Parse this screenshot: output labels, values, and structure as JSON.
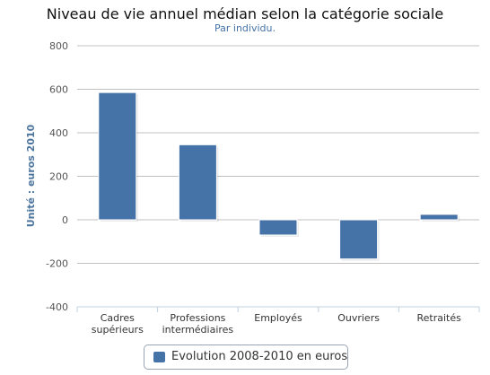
{
  "title": "Niveau de vie annuel médian selon la catégorie sociale",
  "subtitle": "Par individu.",
  "colors": {
    "bar": "#4572a7",
    "grid": "#c0c0c0",
    "axis_text": "#333333",
    "ylabel": "#4d759e"
  },
  "chart_data": {
    "type": "bar",
    "title": "Niveau de vie annuel médian selon la catégorie sociale",
    "subtitle": "Par individu.",
    "categories": [
      "Cadres supérieurs",
      "Professions intermédiaires",
      "Employés",
      "Ouvriers",
      "Retraités"
    ],
    "category_lines": [
      [
        "Cadres",
        "supérieurs"
      ],
      [
        "Professions",
        "intermédiaires"
      ],
      [
        "Employés"
      ],
      [
        "Ouvriers"
      ],
      [
        "Retraités"
      ]
    ],
    "series": [
      {
        "name": "Evolution 2008-2010 en euros",
        "values": [
          585,
          345,
          -70,
          -180,
          25
        ]
      }
    ],
    "ylabel": "Unité : euros 2010",
    "ylim": [
      -400,
      800
    ],
    "yticks": [
      -400,
      -200,
      0,
      200,
      400,
      600,
      800
    ],
    "grid": true,
    "legend": "bottom-center"
  }
}
